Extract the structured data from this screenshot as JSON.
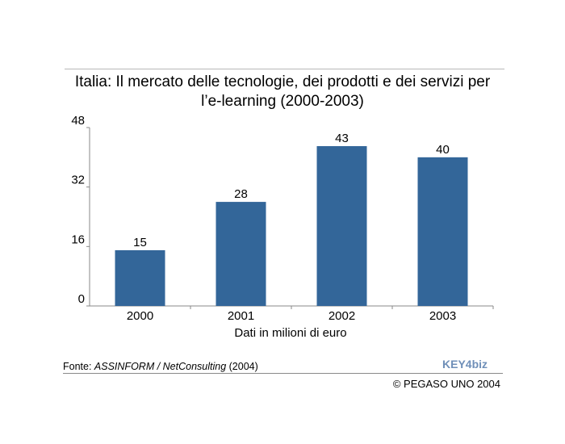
{
  "chart_data": {
    "type": "bar",
    "title_line1": "Italia: Il mercato delle tecnologie, dei prodotti e dei servizi per",
    "title_line2": "l’e-learning (2000-2003)",
    "categories": [
      "2000",
      "2001",
      "2002",
      "2003"
    ],
    "values": [
      15,
      28,
      43,
      40
    ],
    "data_labels": [
      "15",
      "28",
      "43",
      "40"
    ],
    "xlabel": "Dati in milioni di euro",
    "ylabel": "",
    "ylim": [
      0,
      48
    ],
    "yticks": [
      0,
      16,
      32,
      48
    ],
    "grid": false,
    "bar_color": "#336699"
  },
  "footer": {
    "source_prefix": "Fonte: ",
    "source_italic": "ASSINFORM / NetConsulting",
    "source_suffix": " (2004)",
    "logo_text": "KEY4biz",
    "copyright": "© PEGASO UNO 2004"
  }
}
